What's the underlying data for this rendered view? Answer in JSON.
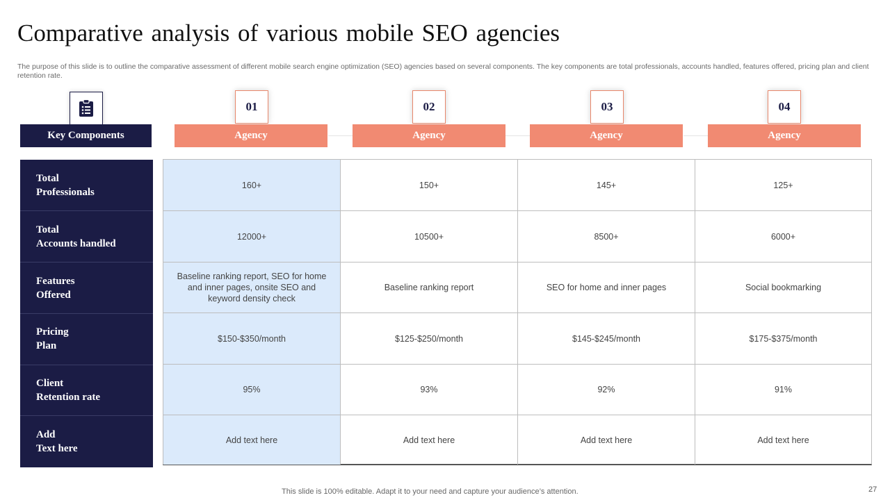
{
  "title": "Comparative analysis of various mobile SEO agencies",
  "subtitle": "The purpose of this slide is to outline the comparative assessment of different mobile search engine optimization (SEO) agencies based on several components. The key components are total professionals, accounts handled, features offered, pricing plan and client retention rate.",
  "key_header": "Key Components",
  "key_icon": "clipboard-list-icon",
  "agencies": [
    {
      "number": "01",
      "label": "Agency"
    },
    {
      "number": "02",
      "label": "Agency"
    },
    {
      "number": "03",
      "label": "Agency"
    },
    {
      "number": "04",
      "label": "Agency"
    }
  ],
  "components": [
    "Total\nProfessionals",
    "Total\nAccounts handled",
    "Features\nOffered",
    "Pricing\nPlan",
    "Client\nRetention rate",
    "Add\nText here"
  ],
  "rows": [
    [
      "160+",
      "150+",
      "145+",
      "125+"
    ],
    [
      "12000+",
      "10500+",
      "8500+",
      "6000+"
    ],
    [
      "Baseline ranking report, SEO for home and inner pages, onsite SEO and keyword density check",
      "Baseline ranking report",
      "SEO for home and inner pages",
      "Social bookmarking"
    ],
    [
      "$150-$350/month",
      "$125-$250/month",
      "$145-$245/month",
      "$175-$375/month"
    ],
    [
      "95%",
      "93%",
      "92%",
      "91%"
    ],
    [
      "Add text here",
      "Add text here",
      "Add text here",
      "Add text here"
    ]
  ],
  "footer": "This slide is 100% editable. Adapt it to your need and capture your audience’s attention.",
  "page_number": "27",
  "colors": {
    "navy": "#1b1c45",
    "salmon": "#f18a72",
    "highlight": "#dbeafb"
  }
}
